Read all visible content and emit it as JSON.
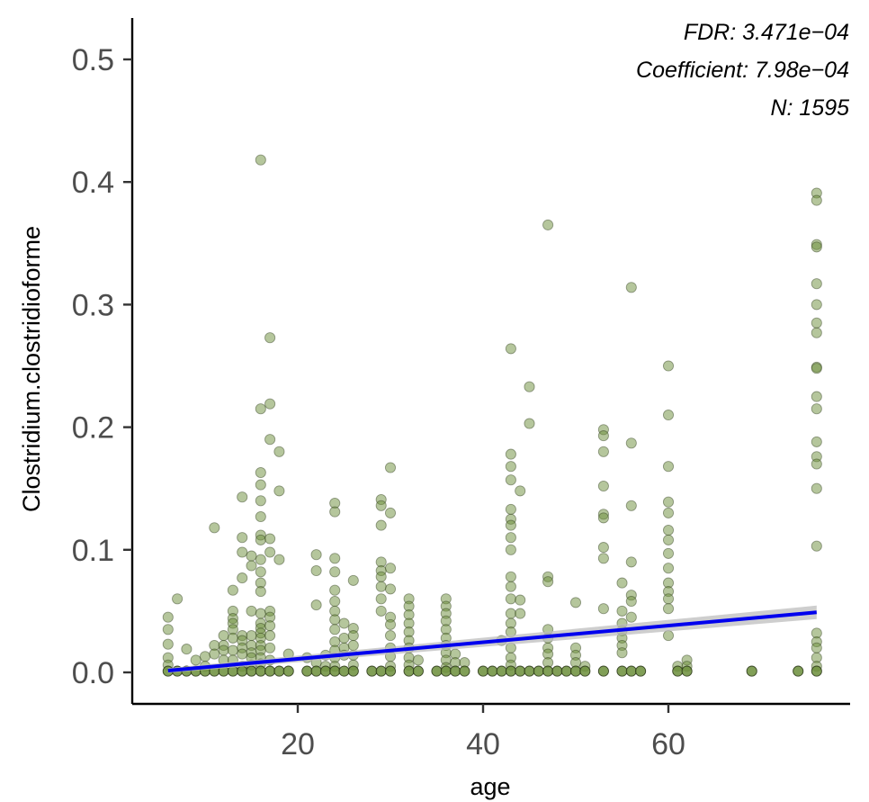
{
  "chart_data": {
    "type": "scatter",
    "title": "",
    "xlabel": "age",
    "ylabel": "Clostridium.clostridioforme",
    "xlim": [
      3,
      80
    ],
    "ylim": [
      -0.025,
      0.53
    ],
    "xticks": [
      20,
      40,
      60
    ],
    "yticks": [
      0.0,
      0.1,
      0.2,
      0.3,
      0.4,
      0.5
    ],
    "ytick_labels": [
      "0.0",
      "0.1",
      "0.2",
      "0.3",
      "0.4",
      "0.5"
    ],
    "grid": false,
    "annotations": {
      "fdr": "FDR: 3.471e−04",
      "coefficient": "Coefficient: 7.98e−04",
      "n": "N: 1595"
    },
    "point_color": "#6b8e3a",
    "line_color": "#0000ee",
    "ribbon_color": "#bdbdbd",
    "trend": {
      "x": [
        6,
        76
      ],
      "y": [
        0.0015,
        0.049
      ],
      "ci_halfwidth": [
        0.002,
        0.0055
      ]
    },
    "points": [
      [
        6,
        0.045
      ],
      [
        6,
        0.035
      ],
      [
        6,
        0.023
      ],
      [
        6,
        0.012
      ],
      [
        6,
        0.006
      ],
      [
        6,
        0.001
      ],
      [
        7,
        0.06
      ],
      [
        7,
        0.001
      ],
      [
        8,
        0.019
      ],
      [
        8,
        0.001
      ],
      [
        9,
        0.01
      ],
      [
        9,
        0.001
      ],
      [
        10,
        0.013
      ],
      [
        10,
        0.005
      ],
      [
        10,
        0.001
      ],
      [
        11,
        0.118
      ],
      [
        11,
        0.022
      ],
      [
        11,
        0.015
      ],
      [
        11,
        0.001
      ],
      [
        12,
        0.03
      ],
      [
        12,
        0.022
      ],
      [
        12,
        0.018
      ],
      [
        12,
        0.01
      ],
      [
        12,
        0.001
      ],
      [
        13,
        0.067
      ],
      [
        13,
        0.05
      ],
      [
        13,
        0.044
      ],
      [
        13,
        0.04
      ],
      [
        13,
        0.035
      ],
      [
        13,
        0.028
      ],
      [
        13,
        0.018
      ],
      [
        13,
        0.01
      ],
      [
        13,
        0.001
      ],
      [
        14,
        0.143
      ],
      [
        14,
        0.11
      ],
      [
        14,
        0.098
      ],
      [
        14,
        0.077
      ],
      [
        14,
        0.03
      ],
      [
        14,
        0.026
      ],
      [
        14,
        0.02
      ],
      [
        14,
        0.015
      ],
      [
        14,
        0.005
      ],
      [
        14,
        0.001
      ],
      [
        15,
        0.095
      ],
      [
        15,
        0.087
      ],
      [
        15,
        0.05
      ],
      [
        15,
        0.03
      ],
      [
        15,
        0.022
      ],
      [
        15,
        0.016
      ],
      [
        15,
        0.012
      ],
      [
        15,
        0.006
      ],
      [
        15,
        0.001
      ],
      [
        16,
        0.418
      ],
      [
        16,
        0.215
      ],
      [
        16,
        0.163
      ],
      [
        16,
        0.153
      ],
      [
        16,
        0.14
      ],
      [
        16,
        0.127
      ],
      [
        16,
        0.112
      ],
      [
        16,
        0.108
      ],
      [
        16,
        0.092
      ],
      [
        16,
        0.082
      ],
      [
        16,
        0.073
      ],
      [
        16,
        0.066
      ],
      [
        16,
        0.048
      ],
      [
        16,
        0.04
      ],
      [
        16,
        0.036
      ],
      [
        16,
        0.032
      ],
      [
        16,
        0.028
      ],
      [
        16,
        0.022
      ],
      [
        16,
        0.018
      ],
      [
        16,
        0.012
      ],
      [
        16,
        0.007
      ],
      [
        16,
        0.001
      ],
      [
        17,
        0.273
      ],
      [
        17,
        0.219
      ],
      [
        17,
        0.19
      ],
      [
        17,
        0.109
      ],
      [
        17,
        0.098
      ],
      [
        17,
        0.05
      ],
      [
        17,
        0.045
      ],
      [
        17,
        0.038
      ],
      [
        17,
        0.03
      ],
      [
        17,
        0.02
      ],
      [
        17,
        0.01
      ],
      [
        17,
        0.001
      ],
      [
        18,
        0.18
      ],
      [
        18,
        0.148
      ],
      [
        18,
        0.092
      ],
      [
        18,
        0.001
      ],
      [
        19,
        0.015
      ],
      [
        19,
        0.001
      ],
      [
        21,
        0.012
      ],
      [
        21,
        0.001
      ],
      [
        22,
        0.096
      ],
      [
        22,
        0.083
      ],
      [
        22,
        0.055
      ],
      [
        22,
        0.008
      ],
      [
        22,
        0.001
      ],
      [
        23,
        0.014
      ],
      [
        23,
        0.005
      ],
      [
        23,
        0.001
      ],
      [
        24,
        0.138
      ],
      [
        24,
        0.131
      ],
      [
        24,
        0.093
      ],
      [
        24,
        0.082
      ],
      [
        24,
        0.067
      ],
      [
        24,
        0.058
      ],
      [
        24,
        0.05
      ],
      [
        24,
        0.043
      ],
      [
        24,
        0.035
      ],
      [
        24,
        0.025
      ],
      [
        24,
        0.018
      ],
      [
        24,
        0.012
      ],
      [
        24,
        0.005
      ],
      [
        24,
        0.001
      ],
      [
        25,
        0.04
      ],
      [
        25,
        0.028
      ],
      [
        25,
        0.02
      ],
      [
        25,
        0.014
      ],
      [
        25,
        0.001
      ],
      [
        26,
        0.075
      ],
      [
        26,
        0.036
      ],
      [
        26,
        0.03
      ],
      [
        26,
        0.022
      ],
      [
        26,
        0.014
      ],
      [
        26,
        0.006
      ],
      [
        26,
        0.001
      ],
      [
        28,
        0.001
      ],
      [
        29,
        0.141
      ],
      [
        29,
        0.136
      ],
      [
        29,
        0.12
      ],
      [
        29,
        0.09
      ],
      [
        29,
        0.083
      ],
      [
        29,
        0.078
      ],
      [
        29,
        0.07
      ],
      [
        29,
        0.06
      ],
      [
        29,
        0.05
      ],
      [
        29,
        0.001
      ],
      [
        30,
        0.167
      ],
      [
        30,
        0.13
      ],
      [
        30,
        0.085
      ],
      [
        30,
        0.068
      ],
      [
        30,
        0.045
      ],
      [
        30,
        0.039
      ],
      [
        30,
        0.03
      ],
      [
        30,
        0.02
      ],
      [
        30,
        0.013
      ],
      [
        30,
        0.005
      ],
      [
        30,
        0.001
      ],
      [
        32,
        0.06
      ],
      [
        32,
        0.054
      ],
      [
        32,
        0.047
      ],
      [
        32,
        0.04
      ],
      [
        32,
        0.033
      ],
      [
        32,
        0.026
      ],
      [
        32,
        0.02
      ],
      [
        32,
        0.012
      ],
      [
        32,
        0.006
      ],
      [
        32,
        0.001
      ],
      [
        33,
        0.01
      ],
      [
        33,
        0.001
      ],
      [
        35,
        0.001
      ],
      [
        36,
        0.06
      ],
      [
        36,
        0.054
      ],
      [
        36,
        0.048
      ],
      [
        36,
        0.042
      ],
      [
        36,
        0.035
      ],
      [
        36,
        0.028
      ],
      [
        36,
        0.022
      ],
      [
        36,
        0.016
      ],
      [
        36,
        0.01
      ],
      [
        36,
        0.004
      ],
      [
        36,
        0.001
      ],
      [
        37,
        0.015
      ],
      [
        37,
        0.008
      ],
      [
        37,
        0.001
      ],
      [
        38,
        0.008
      ],
      [
        38,
        0.001
      ],
      [
        40,
        0.001
      ],
      [
        41,
        0.001
      ],
      [
        42,
        0.026
      ],
      [
        42,
        0.001
      ],
      [
        43,
        0.264
      ],
      [
        43,
        0.178
      ],
      [
        43,
        0.168
      ],
      [
        43,
        0.157
      ],
      [
        43,
        0.133
      ],
      [
        43,
        0.125
      ],
      [
        43,
        0.12
      ],
      [
        43,
        0.11
      ],
      [
        43,
        0.1
      ],
      [
        43,
        0.078
      ],
      [
        43,
        0.07
      ],
      [
        43,
        0.06
      ],
      [
        43,
        0.048
      ],
      [
        43,
        0.04
      ],
      [
        43,
        0.033
      ],
      [
        43,
        0.02
      ],
      [
        43,
        0.012
      ],
      [
        43,
        0.006
      ],
      [
        43,
        0.001
      ],
      [
        44,
        0.148
      ],
      [
        44,
        0.059
      ],
      [
        44,
        0.048
      ],
      [
        44,
        0.001
      ],
      [
        45,
        0.233
      ],
      [
        45,
        0.203
      ],
      [
        45,
        0.001
      ],
      [
        46,
        0.001
      ],
      [
        47,
        0.365
      ],
      [
        47,
        0.078
      ],
      [
        47,
        0.074
      ],
      [
        47,
        0.035
      ],
      [
        47,
        0.028
      ],
      [
        47,
        0.02
      ],
      [
        47,
        0.015
      ],
      [
        47,
        0.008
      ],
      [
        47,
        0.001
      ],
      [
        48,
        0.001
      ],
      [
        49,
        0.001
      ],
      [
        50,
        0.057
      ],
      [
        50,
        0.02
      ],
      [
        50,
        0.014
      ],
      [
        50,
        0.008
      ],
      [
        50,
        0.001
      ],
      [
        51,
        0.005
      ],
      [
        51,
        0.001
      ],
      [
        53,
        0.198
      ],
      [
        53,
        0.193
      ],
      [
        53,
        0.18
      ],
      [
        53,
        0.152
      ],
      [
        53,
        0.129
      ],
      [
        53,
        0.126
      ],
      [
        53,
        0.102
      ],
      [
        53,
        0.093
      ],
      [
        53,
        0.052
      ],
      [
        53,
        0.001
      ],
      [
        55,
        0.073
      ],
      [
        55,
        0.05
      ],
      [
        55,
        0.04
      ],
      [
        55,
        0.034
      ],
      [
        55,
        0.028
      ],
      [
        55,
        0.022
      ],
      [
        55,
        0.016
      ],
      [
        55,
        0.001
      ],
      [
        56,
        0.314
      ],
      [
        56,
        0.187
      ],
      [
        56,
        0.136
      ],
      [
        56,
        0.09
      ],
      [
        56,
        0.063
      ],
      [
        56,
        0.058
      ],
      [
        56,
        0.045
      ],
      [
        56,
        0.001
      ],
      [
        57,
        0.001
      ],
      [
        60,
        0.25
      ],
      [
        60,
        0.21
      ],
      [
        60,
        0.168
      ],
      [
        60,
        0.139
      ],
      [
        60,
        0.13
      ],
      [
        60,
        0.116
      ],
      [
        60,
        0.108
      ],
      [
        60,
        0.097
      ],
      [
        60,
        0.085
      ],
      [
        60,
        0.073
      ],
      [
        60,
        0.066
      ],
      [
        60,
        0.06
      ],
      [
        60,
        0.052
      ],
      [
        60,
        0.03
      ],
      [
        61,
        0.005
      ],
      [
        61,
        0.001
      ],
      [
        62,
        0.01
      ],
      [
        62,
        0.005
      ],
      [
        62,
        0.001
      ],
      [
        69,
        0.001
      ],
      [
        74,
        0.001
      ],
      [
        76,
        0.391
      ],
      [
        76,
        0.385
      ],
      [
        76,
        0.349
      ],
      [
        76,
        0.347
      ],
      [
        76,
        0.317
      ],
      [
        76,
        0.3
      ],
      [
        76,
        0.285
      ],
      [
        76,
        0.277
      ],
      [
        76,
        0.249
      ],
      [
        76,
        0.248
      ],
      [
        76,
        0.225
      ],
      [
        76,
        0.215
      ],
      [
        76,
        0.188
      ],
      [
        76,
        0.176
      ],
      [
        76,
        0.17
      ],
      [
        76,
        0.15
      ],
      [
        76,
        0.103
      ],
      [
        76,
        0.032
      ],
      [
        76,
        0.025
      ],
      [
        76,
        0.02
      ],
      [
        76,
        0.012
      ],
      [
        76,
        0.005
      ],
      [
        76,
        0.001
      ]
    ]
  }
}
